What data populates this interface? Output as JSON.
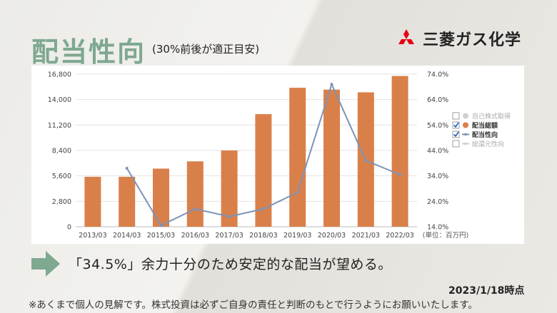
{
  "page": {
    "title": "配当性向",
    "subtitle": "(30%前後が適正目安)",
    "logo_text": "三菱ガス化学",
    "message": "「34.5%」余力十分のため安定的な配当が望める。",
    "date": "2023/1/18時点",
    "disclaimer": "※あくまで個人の見解です。株式投資は必ずご自身の責任と判断のもとで行うようにお願いいたします。"
  },
  "chart_data": {
    "type": "bar",
    "categories": [
      "2013/03",
      "2014/03",
      "2015/03",
      "2016/03",
      "2017/03",
      "2018/03",
      "2019/03",
      "2020/03",
      "2021/03",
      "2022/03"
    ],
    "series": [
      {
        "name": "配当総額",
        "type": "bar",
        "axis": "left",
        "color": "#d9804a",
        "values": [
          5500,
          5500,
          6400,
          7200,
          8400,
          12400,
          15300,
          15100,
          14800,
          16600
        ]
      },
      {
        "name": "配当性向",
        "type": "line",
        "axis": "right",
        "color": "#7c93b8",
        "values": [
          null,
          37.0,
          14.5,
          21.0,
          18.0,
          21.0,
          27.5,
          70.0,
          40.0,
          34.5
        ]
      }
    ],
    "y_left": {
      "min": 0,
      "max": 16800,
      "ticks": [
        "0",
        "2,800",
        "5,600",
        "8,400",
        "11,200",
        "14,000",
        "16,800"
      ]
    },
    "y_right": {
      "min": 14.0,
      "max": 74.0,
      "ticks": [
        "14.0%",
        "24.0%",
        "34.0%",
        "44.0%",
        "54.0%",
        "64.0%",
        "74.0%"
      ]
    },
    "unit_label": "(単位：百万円)",
    "grid": true,
    "legend_position": "right",
    "legend": [
      {
        "label": "自己株式取得",
        "checked": false,
        "marker": "dot",
        "color": "#cfcfcf",
        "muted": true
      },
      {
        "label": "配当総額",
        "checked": true,
        "marker": "dot",
        "color": "#d9804a",
        "muted": false
      },
      {
        "label": "配当性向",
        "checked": true,
        "marker": "line",
        "color": "#7c93b8",
        "muted": false
      },
      {
        "label": "総還元性向",
        "checked": false,
        "marker": "line",
        "color": "#cfcfcf",
        "muted": true
      }
    ]
  }
}
